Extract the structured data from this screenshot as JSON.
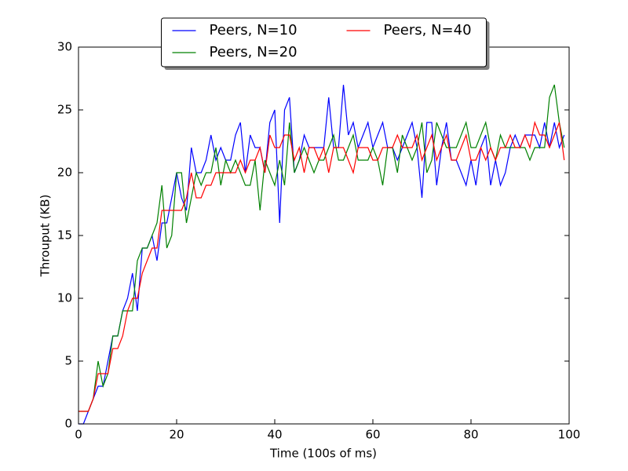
{
  "chart_data": {
    "type": "line",
    "x_label": "Time (100s of ms)",
    "y_label": "Throuput (KB)",
    "x": [
      0,
      1,
      2,
      3,
      4,
      5,
      6,
      7,
      8,
      9,
      10,
      11,
      12,
      13,
      14,
      15,
      16,
      17,
      18,
      19,
      20,
      21,
      22,
      23,
      24,
      25,
      26,
      27,
      28,
      29,
      30,
      31,
      32,
      33,
      34,
      35,
      36,
      37,
      38,
      39,
      40,
      41,
      42,
      43,
      44,
      45,
      46,
      47,
      48,
      49,
      50,
      51,
      52,
      53,
      54,
      55,
      56,
      57,
      58,
      59,
      60,
      61,
      62,
      63,
      64,
      65,
      66,
      67,
      68,
      69,
      70,
      71,
      72,
      73,
      74,
      75,
      76,
      77,
      78,
      79,
      80,
      81,
      82,
      83,
      84,
      85,
      86,
      87,
      88,
      89,
      90,
      91,
      92,
      93,
      94,
      95,
      96,
      97,
      98,
      99
    ],
    "series": [
      {
        "name": "Peers, N=10",
        "color": "#0000ff",
        "values": [
          0,
          0,
          1,
          2,
          3,
          3,
          5,
          7,
          7,
          9,
          10,
          12,
          9,
          14,
          14,
          15,
          13,
          16,
          16,
          18,
          20,
          18,
          17,
          22,
          20,
          20,
          21,
          23,
          21,
          22,
          21,
          21,
          23,
          24,
          20,
          23,
          22,
          22,
          20,
          24,
          25,
          16,
          25,
          26,
          20,
          21,
          23,
          22,
          22,
          22,
          22,
          26,
          22,
          22,
          27,
          23,
          24,
          22,
          23,
          24,
          22,
          23,
          24,
          22,
          22,
          21,
          22,
          23,
          24,
          22,
          18,
          24,
          24,
          19,
          22,
          24,
          21,
          21,
          20,
          19,
          21,
          19,
          22,
          23,
          19,
          21,
          19,
          20,
          22,
          23,
          22,
          23,
          23,
          23,
          22,
          24,
          22,
          24,
          22,
          23
        ]
      },
      {
        "name": "Peers, N=20",
        "color": "#008000",
        "values": [
          1,
          1,
          1,
          2,
          5,
          3,
          4,
          7,
          7,
          9,
          9,
          9,
          13,
          14,
          14,
          15,
          16,
          19,
          14,
          15,
          20,
          20,
          16,
          18,
          20,
          19,
          20,
          20,
          22,
          19,
          21,
          20,
          21,
          20,
          19,
          19,
          21,
          17,
          21,
          20,
          19,
          21,
          19,
          24,
          20,
          21,
          22,
          21,
          20,
          21,
          21,
          22,
          23,
          21,
          21,
          22,
          23,
          21,
          21,
          21,
          22,
          21,
          19,
          22,
          22,
          20,
          23,
          22,
          21,
          22,
          24,
          20,
          21,
          24,
          23,
          22,
          22,
          22,
          23,
          24,
          22,
          22,
          23,
          24,
          22,
          21,
          23,
          22,
          22,
          22,
          22,
          22,
          21,
          22,
          22,
          22,
          26,
          27,
          24,
          22
        ]
      },
      {
        "name": "Peers, N=40",
        "color": "#ff0000",
        "values": [
          1,
          1,
          1,
          2,
          4,
          4,
          4,
          6,
          6,
          7,
          9,
          10,
          10,
          12,
          13,
          14,
          14,
          17,
          17,
          17,
          17,
          17,
          18,
          20,
          18,
          18,
          19,
          19,
          20,
          20,
          20,
          20,
          20,
          21,
          20,
          21,
          21,
          22,
          20,
          23,
          22,
          22,
          23,
          23,
          21,
          22,
          20,
          22,
          22,
          21,
          22,
          20,
          22,
          22,
          22,
          21,
          20,
          22,
          22,
          22,
          21,
          21,
          22,
          22,
          22,
          23,
          22,
          22,
          22,
          23,
          21,
          22,
          23,
          21,
          22,
          23,
          21,
          21,
          22,
          23,
          21,
          21,
          22,
          21,
          22,
          21,
          22,
          22,
          23,
          22,
          22,
          23,
          22,
          24,
          23,
          23,
          22,
          23,
          24,
          21
        ]
      }
    ],
    "xlim": [
      0,
      100
    ],
    "xticks": [
      0,
      20,
      40,
      60,
      80,
      100
    ],
    "ylim": [
      0,
      30
    ],
    "yticks": [
      0,
      5,
      10,
      15,
      20,
      25,
      30
    ],
    "legend": "upper center",
    "legend_columns": 2
  }
}
